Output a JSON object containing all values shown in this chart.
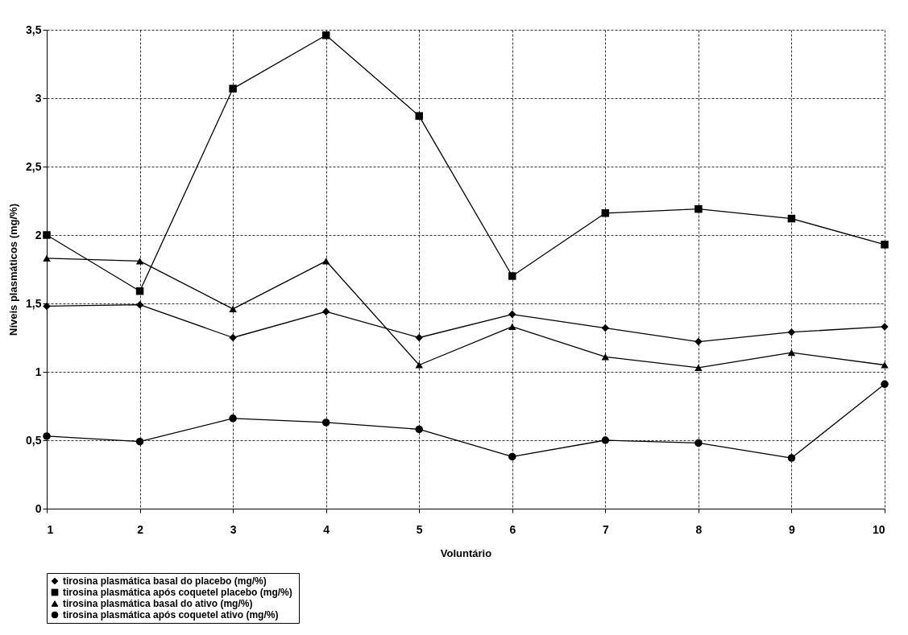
{
  "chart_data": {
    "type": "line",
    "xlabel": "Voluntário",
    "ylabel": "Níveis plasmáticos (mg/%)",
    "x": [
      1,
      2,
      3,
      4,
      5,
      6,
      7,
      8,
      9,
      10
    ],
    "xlim": [
      1,
      10
    ],
    "xticks": [
      1,
      2,
      3,
      4,
      5,
      6,
      7,
      8,
      9,
      10
    ],
    "ylim": [
      0,
      3.5
    ],
    "yticks": [
      0,
      {
        "value": 0.5,
        "label": "0,5"
      },
      1,
      {
        "value": 1.5,
        "label": "1,5"
      },
      2,
      {
        "value": 2.5,
        "label": "2,5"
      },
      3,
      {
        "value": 3.5,
        "label": "3,5"
      }
    ],
    "grid": true,
    "legend": "bottom",
    "series": [
      {
        "name": "tirosina plasmática basal do placebo (mg/%)",
        "color": "#000000",
        "marker": "diamond",
        "values": [
          1.48,
          1.49,
          1.25,
          1.44,
          1.25,
          1.42,
          1.32,
          1.22,
          1.29,
          1.33
        ]
      },
      {
        "name": "tirosina plasmática após  coquetel placebo (mg/%)",
        "color": "#000000",
        "marker": "square",
        "values": [
          2.0,
          1.59,
          3.07,
          3.46,
          2.87,
          1.7,
          2.16,
          2.19,
          2.12,
          1.93
        ]
      },
      {
        "name": "tirosina plasmática basal do ativo (mg/%)",
        "color": "#000000",
        "marker": "triangle",
        "values": [
          1.83,
          1.81,
          1.46,
          1.81,
          1.05,
          1.33,
          1.11,
          1.03,
          1.14,
          1.05
        ]
      },
      {
        "name": "tirosina plasmática após coquetel ativo (mg/%)",
        "color": "#000000",
        "marker": "circle",
        "values": [
          0.53,
          0.49,
          0.66,
          0.63,
          0.58,
          0.38,
          0.5,
          0.48,
          0.37,
          0.91
        ]
      }
    ]
  }
}
